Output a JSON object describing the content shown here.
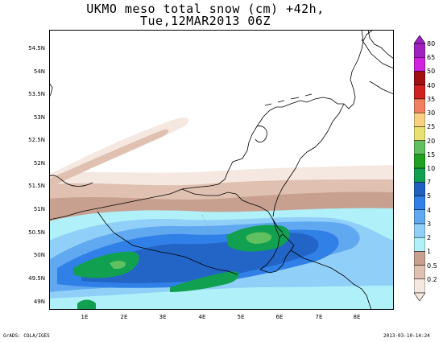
{
  "title_line1": "UKMO meso total snow (cm) +42h,",
  "title_line2": "Tue,12MAR2013 06Z",
  "y_labels": [
    "54.5N",
    "54N",
    "53.5N",
    "53N",
    "52.5N",
    "52N",
    "51.5N",
    "51N",
    "50.5N",
    "50N",
    "49.5N",
    "49N"
  ],
  "x_labels": [
    "1E",
    "2E",
    "3E",
    "4E",
    "5E",
    "6E",
    "7E",
    "8E"
  ],
  "legend": {
    "levels": [
      "80",
      "65",
      "50",
      "40",
      "35",
      "30",
      "25",
      "20",
      "15",
      "10",
      "7",
      "5",
      "4",
      "3",
      "2",
      "1",
      "0.5",
      "0.2"
    ],
    "colors": [
      "#a020c0",
      "#d020e0",
      "#a01010",
      "#d02020",
      "#f08060",
      "#f8d080",
      "#e8e070",
      "#60c060",
      "#20a020",
      "#10a050",
      "#2060c0",
      "#3080e8",
      "#60a8f0",
      "#90d0f8",
      "#b0f0f8",
      "#c8a090",
      "#e0c0b0",
      "#f4e8e0"
    ]
  },
  "footer_left": "GrADS: COLA/IGES",
  "footer_right": "2013-03-10-14:24"
}
